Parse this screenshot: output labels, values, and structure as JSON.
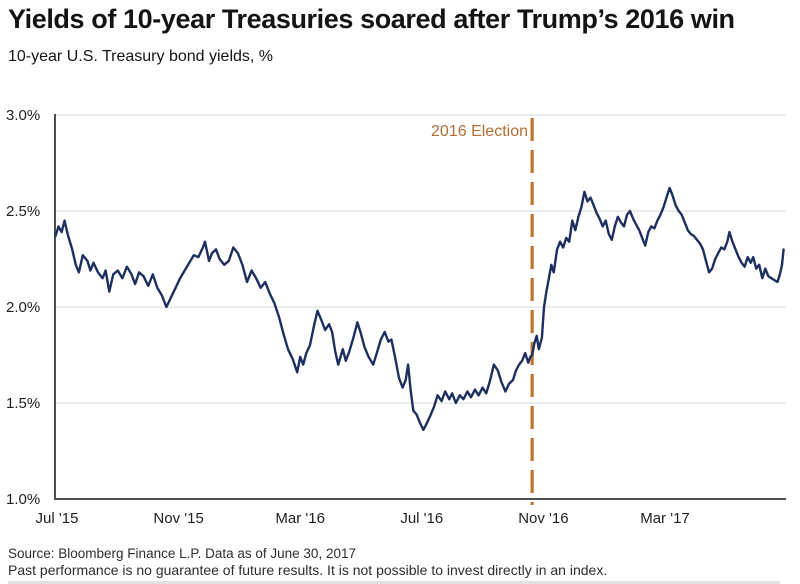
{
  "header": {
    "title": "Yields of 10-year Treasuries soared after Trump’s 2016 win",
    "subtitle": "10-year U.S. Treasury bond yields, %"
  },
  "footer": {
    "source": "Source: Bloomberg Finance L.P. Data as of June 30, 2017",
    "disclaimer": "Past performance is no guarantee of future results. It is not possible to invest directly in an index."
  },
  "colors": {
    "line": "#1d2f5f",
    "annotation": "#c0752e",
    "annotation_text": "#b26e35",
    "grid": "#dadada",
    "axis": "#4d4e52",
    "text": "#1a1a1a"
  },
  "chart_data": {
    "type": "line",
    "title": "Yields of 10-year Treasuries soared after Trump’s 2016 win",
    "subtitle": "10-year U.S. Treasury bond yields, %",
    "xlabel": "",
    "ylabel": "10-year U.S. Treasury bond yield, %",
    "x_unit": "months since Jul 2015",
    "xlim": [
      -0.1,
      24.1
    ],
    "ylim": [
      1.0,
      3.0
    ],
    "grid": "horizontal",
    "legend": "none",
    "x_ticks": [
      {
        "month": 0,
        "label": "Jul '15"
      },
      {
        "month": 4,
        "label": "Nov '15"
      },
      {
        "month": 8,
        "label": "Mar '16"
      },
      {
        "month": 12,
        "label": "Jul '16"
      },
      {
        "month": 16,
        "label": "Nov '16"
      },
      {
        "month": 20,
        "label": "Mar '17"
      }
    ],
    "y_ticks": [
      {
        "value": 3.0,
        "label": "3.0%"
      },
      {
        "value": 2.5,
        "label": "2.5%"
      },
      {
        "value": 2.0,
        "label": "2.0%"
      },
      {
        "value": 1.5,
        "label": "1.5%"
      },
      {
        "value": 1.0,
        "label": "1.0%"
      }
    ],
    "annotation": {
      "label": "2016 Election",
      "x_month": 15.63
    },
    "series": [
      {
        "name": "10-year U.S. Treasury bond yield (%)",
        "points": [
          [
            -0.05,
            2.37
          ],
          [
            0.05,
            2.42
          ],
          [
            0.15,
            2.39
          ],
          [
            0.25,
            2.45
          ],
          [
            0.35,
            2.38
          ],
          [
            0.5,
            2.3
          ],
          [
            0.62,
            2.22
          ],
          [
            0.72,
            2.18
          ],
          [
            0.85,
            2.27
          ],
          [
            1.0,
            2.24
          ],
          [
            1.1,
            2.19
          ],
          [
            1.2,
            2.23
          ],
          [
            1.35,
            2.18
          ],
          [
            1.5,
            2.15
          ],
          [
            1.6,
            2.19
          ],
          [
            1.72,
            2.08
          ],
          [
            1.85,
            2.17
          ],
          [
            2.0,
            2.19
          ],
          [
            2.15,
            2.15
          ],
          [
            2.3,
            2.21
          ],
          [
            2.45,
            2.17
          ],
          [
            2.57,
            2.12
          ],
          [
            2.7,
            2.18
          ],
          [
            2.85,
            2.16
          ],
          [
            3.0,
            2.11
          ],
          [
            3.15,
            2.17
          ],
          [
            3.3,
            2.1
          ],
          [
            3.45,
            2.06
          ],
          [
            3.6,
            2.0
          ],
          [
            3.75,
            2.05
          ],
          [
            3.9,
            2.1
          ],
          [
            4.05,
            2.15
          ],
          [
            4.2,
            2.19
          ],
          [
            4.35,
            2.23
          ],
          [
            4.5,
            2.27
          ],
          [
            4.65,
            2.26
          ],
          [
            4.8,
            2.31
          ],
          [
            4.87,
            2.34
          ],
          [
            5.0,
            2.24
          ],
          [
            5.1,
            2.28
          ],
          [
            5.23,
            2.3
          ],
          [
            5.35,
            2.25
          ],
          [
            5.5,
            2.22
          ],
          [
            5.65,
            2.24
          ],
          [
            5.8,
            2.31
          ],
          [
            5.95,
            2.28
          ],
          [
            6.1,
            2.22
          ],
          [
            6.25,
            2.13
          ],
          [
            6.4,
            2.19
          ],
          [
            6.55,
            2.15
          ],
          [
            6.7,
            2.1
          ],
          [
            6.85,
            2.13
          ],
          [
            7.0,
            2.07
          ],
          [
            7.15,
            2.02
          ],
          [
            7.3,
            1.95
          ],
          [
            7.45,
            1.86
          ],
          [
            7.6,
            1.78
          ],
          [
            7.75,
            1.73
          ],
          [
            7.9,
            1.66
          ],
          [
            8.0,
            1.74
          ],
          [
            8.1,
            1.7
          ],
          [
            8.2,
            1.76
          ],
          [
            8.32,
            1.8
          ],
          [
            8.45,
            1.9
          ],
          [
            8.57,
            1.98
          ],
          [
            8.7,
            1.93
          ],
          [
            8.82,
            1.88
          ],
          [
            8.95,
            1.91
          ],
          [
            9.05,
            1.87
          ],
          [
            9.15,
            1.77
          ],
          [
            9.25,
            1.7
          ],
          [
            9.4,
            1.78
          ],
          [
            9.5,
            1.72
          ],
          [
            9.62,
            1.77
          ],
          [
            9.75,
            1.84
          ],
          [
            9.88,
            1.92
          ],
          [
            10.0,
            1.86
          ],
          [
            10.12,
            1.79
          ],
          [
            10.25,
            1.74
          ],
          [
            10.4,
            1.7
          ],
          [
            10.52,
            1.76
          ],
          [
            10.65,
            1.83
          ],
          [
            10.78,
            1.87
          ],
          [
            10.9,
            1.82
          ],
          [
            11.0,
            1.83
          ],
          [
            11.12,
            1.74
          ],
          [
            11.25,
            1.63
          ],
          [
            11.37,
            1.58
          ],
          [
            11.47,
            1.62
          ],
          [
            11.55,
            1.7
          ],
          [
            11.63,
            1.57
          ],
          [
            11.72,
            1.46
          ],
          [
            11.83,
            1.44
          ],
          [
            11.93,
            1.4
          ],
          [
            12.05,
            1.36
          ],
          [
            12.15,
            1.39
          ],
          [
            12.27,
            1.43
          ],
          [
            12.4,
            1.48
          ],
          [
            12.52,
            1.54
          ],
          [
            12.65,
            1.51
          ],
          [
            12.77,
            1.56
          ],
          [
            12.9,
            1.52
          ],
          [
            13.0,
            1.55
          ],
          [
            13.12,
            1.5
          ],
          [
            13.25,
            1.54
          ],
          [
            13.37,
            1.52
          ],
          [
            13.5,
            1.56
          ],
          [
            13.62,
            1.53
          ],
          [
            13.75,
            1.57
          ],
          [
            13.87,
            1.54
          ],
          [
            14.0,
            1.58
          ],
          [
            14.12,
            1.55
          ],
          [
            14.25,
            1.62
          ],
          [
            14.37,
            1.7
          ],
          [
            14.5,
            1.67
          ],
          [
            14.62,
            1.61
          ],
          [
            14.75,
            1.56
          ],
          [
            14.87,
            1.6
          ],
          [
            15.0,
            1.62
          ],
          [
            15.1,
            1.67
          ],
          [
            15.2,
            1.7
          ],
          [
            15.3,
            1.72
          ],
          [
            15.4,
            1.76
          ],
          [
            15.5,
            1.71
          ],
          [
            15.57,
            1.74
          ],
          [
            15.63,
            1.75
          ],
          [
            15.7,
            1.81
          ],
          [
            15.78,
            1.85
          ],
          [
            15.85,
            1.78
          ],
          [
            15.95,
            1.84
          ],
          [
            16.02,
            2.0
          ],
          [
            16.1,
            2.08
          ],
          [
            16.18,
            2.15
          ],
          [
            16.26,
            2.22
          ],
          [
            16.34,
            2.18
          ],
          [
            16.45,
            2.3
          ],
          [
            16.55,
            2.34
          ],
          [
            16.65,
            2.31
          ],
          [
            16.75,
            2.36
          ],
          [
            16.85,
            2.34
          ],
          [
            16.95,
            2.45
          ],
          [
            17.05,
            2.4
          ],
          [
            17.15,
            2.47
          ],
          [
            17.25,
            2.52
          ],
          [
            17.35,
            2.6
          ],
          [
            17.45,
            2.55
          ],
          [
            17.55,
            2.57
          ],
          [
            17.65,
            2.53
          ],
          [
            17.75,
            2.49
          ],
          [
            17.85,
            2.46
          ],
          [
            17.95,
            2.42
          ],
          [
            18.05,
            2.45
          ],
          [
            18.15,
            2.38
          ],
          [
            18.25,
            2.35
          ],
          [
            18.35,
            2.42
          ],
          [
            18.45,
            2.47
          ],
          [
            18.55,
            2.44
          ],
          [
            18.65,
            2.42
          ],
          [
            18.75,
            2.48
          ],
          [
            18.85,
            2.5
          ],
          [
            18.95,
            2.46
          ],
          [
            19.05,
            2.43
          ],
          [
            19.15,
            2.4
          ],
          [
            19.25,
            2.36
          ],
          [
            19.35,
            2.32
          ],
          [
            19.45,
            2.39
          ],
          [
            19.55,
            2.42
          ],
          [
            19.65,
            2.41
          ],
          [
            19.75,
            2.45
          ],
          [
            19.85,
            2.48
          ],
          [
            19.95,
            2.52
          ],
          [
            20.05,
            2.57
          ],
          [
            20.15,
            2.62
          ],
          [
            20.25,
            2.58
          ],
          [
            20.35,
            2.53
          ],
          [
            20.45,
            2.5
          ],
          [
            20.55,
            2.48
          ],
          [
            20.65,
            2.44
          ],
          [
            20.75,
            2.4
          ],
          [
            20.85,
            2.38
          ],
          [
            20.95,
            2.37
          ],
          [
            21.05,
            2.35
          ],
          [
            21.15,
            2.33
          ],
          [
            21.25,
            2.3
          ],
          [
            21.35,
            2.24
          ],
          [
            21.45,
            2.18
          ],
          [
            21.55,
            2.2
          ],
          [
            21.65,
            2.25
          ],
          [
            21.75,
            2.28
          ],
          [
            21.85,
            2.31
          ],
          [
            21.95,
            2.3
          ],
          [
            22.05,
            2.34
          ],
          [
            22.12,
            2.39
          ],
          [
            22.22,
            2.34
          ],
          [
            22.32,
            2.3
          ],
          [
            22.42,
            2.26
          ],
          [
            22.52,
            2.23
          ],
          [
            22.62,
            2.21
          ],
          [
            22.72,
            2.26
          ],
          [
            22.82,
            2.23
          ],
          [
            22.9,
            2.26
          ],
          [
            23.0,
            2.2
          ],
          [
            23.1,
            2.22
          ],
          [
            23.2,
            2.15
          ],
          [
            23.3,
            2.2
          ],
          [
            23.4,
            2.16
          ],
          [
            23.5,
            2.15
          ],
          [
            23.6,
            2.14
          ],
          [
            23.7,
            2.13
          ],
          [
            23.78,
            2.17
          ],
          [
            23.85,
            2.22
          ],
          [
            23.9,
            2.3
          ]
        ]
      }
    ]
  }
}
